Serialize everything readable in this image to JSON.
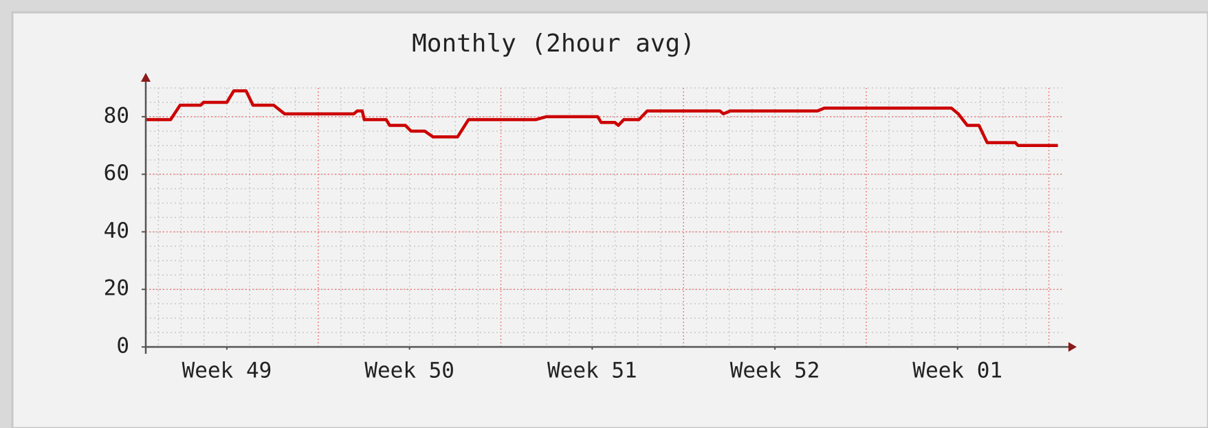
{
  "chart_data": {
    "type": "line",
    "title": "Monthly (2hour avg)",
    "x": [
      48.556,
      48.692,
      48.744,
      48.857,
      48.872,
      49.0,
      49.038,
      49.105,
      49.143,
      49.256,
      49.316,
      49.695,
      49.714,
      49.741,
      49.752,
      49.872,
      49.891,
      49.977,
      50.008,
      50.083,
      50.128,
      50.263,
      50.323,
      50.692,
      50.748,
      51.03,
      51.049,
      51.124,
      51.143,
      51.173,
      51.256,
      51.301,
      51.699,
      51.718,
      51.756,
      52.233,
      52.271,
      52.966,
      53.004,
      53.053,
      53.117,
      53.162,
      53.316,
      53.331,
      53.549
    ],
    "series": [
      {
        "color": "#cc0000",
        "values": [
          79,
          79,
          84,
          84,
          85,
          85,
          89,
          89,
          84,
          84,
          81,
          81,
          82,
          82,
          79,
          79,
          77,
          77,
          75,
          75,
          73,
          73,
          79,
          79,
          80,
          80,
          78,
          78,
          77,
          79,
          79,
          82,
          82,
          81,
          82,
          82,
          83,
          83,
          81,
          77,
          77,
          71,
          71,
          70,
          70
        ]
      }
    ],
    "xlim": [
      48.556,
      53.573
    ],
    "xticks": [
      {
        "value": 49,
        "label": "Week 49"
      },
      {
        "value": 50,
        "label": "Week 50"
      },
      {
        "value": 51,
        "label": "Week 51"
      },
      {
        "value": 52,
        "label": "Week 52"
      },
      {
        "value": 53,
        "label": "Week 01"
      }
    ],
    "ylim": [
      0,
      90
    ],
    "yticks": [
      0,
      20,
      40,
      60,
      80
    ],
    "grid": true
  }
}
